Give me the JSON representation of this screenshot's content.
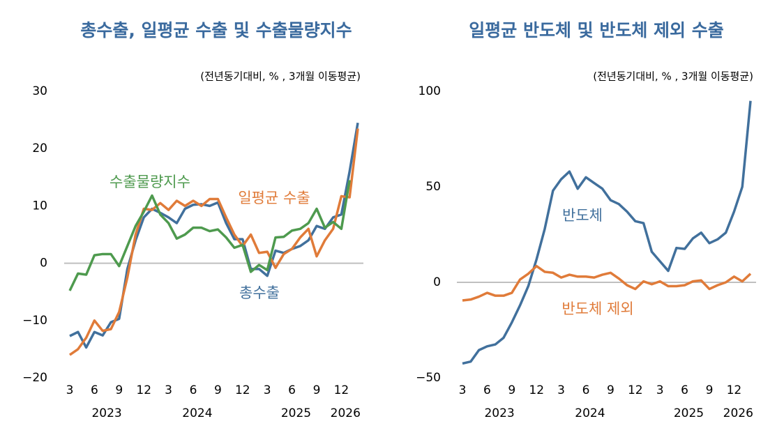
{
  "chart_data": [
    {
      "type": "line",
      "title": "총수출, 일평균 수출 및 수출물량지수",
      "subtitle": "(전년동기대비, % , 3개월 이동평균)",
      "categories": [
        "3",
        null,
        null,
        "6",
        null,
        null,
        "9",
        null,
        null,
        "12",
        null,
        null,
        "3",
        null,
        null,
        "6",
        null,
        null,
        "9",
        null,
        null,
        "12",
        null,
        null,
        "3",
        null,
        null,
        "6",
        null,
        null,
        "9",
        null,
        null,
        "12",
        null,
        null
      ],
      "year_labels": [
        null,
        null,
        null,
        null,
        "2023",
        null,
        null,
        null,
        null,
        null,
        null,
        null,
        null,
        null,
        null,
        "2024",
        null,
        null,
        null,
        null,
        null,
        null,
        null,
        null,
        null,
        null,
        null,
        "2025",
        null,
        null,
        null,
        null,
        null,
        "2026",
        null,
        null
      ],
      "ylim": [
        -20,
        30
      ],
      "yticks": [
        {
          "value": -20,
          "label": "−20"
        },
        {
          "value": -10,
          "label": "−10"
        },
        0,
        10,
        20,
        30
      ],
      "zero_line": true,
      "grid": false,
      "series": [
        {
          "name": "총수출",
          "color": "#41709c",
          "values": [
            -12.7,
            -12.0,
            -14.7,
            -12.0,
            -12.6,
            -10.3,
            -9.7,
            -1.0,
            4.0,
            8.0,
            9.5,
            8.8,
            8.0,
            7.0,
            9.5,
            10.2,
            10.3,
            10.0,
            10.6,
            7.0,
            4.2,
            4.2,
            -1.0,
            -1.0,
            -2.2,
            2.2,
            1.8,
            2.5,
            3.0,
            4.0,
            6.5,
            6.0,
            8.0,
            8.5,
            16.0,
            24.5
          ]
        },
        {
          "name": "일평균 수출",
          "color": "#e07b39",
          "values": [
            -16.0,
            -15.0,
            -13.0,
            -10.0,
            -11.8,
            -11.5,
            -8.5,
            -2.5,
            5.0,
            9.5,
            9.3,
            10.5,
            9.3,
            10.9,
            10.0,
            10.9,
            10.0,
            11.2,
            11.2,
            8.0,
            5.0,
            3.0,
            5.0,
            1.8,
            2.0,
            -0.8,
            1.6,
            2.5,
            4.5,
            6.0,
            1.2,
            4.0,
            6.0,
            11.7,
            11.5,
            23.5
          ]
        },
        {
          "name": "수출물량지수",
          "color": "#4e9a4e",
          "values": [
            -4.8,
            -1.8,
            -2.0,
            1.4,
            1.6,
            1.6,
            -0.5,
            3.0,
            6.5,
            9.0,
            11.8,
            8.5,
            7.0,
            4.3,
            5.0,
            6.2,
            6.2,
            5.6,
            5.9,
            4.5,
            2.7,
            3.2,
            -1.5,
            -0.3,
            -1.2,
            4.5,
            4.6,
            5.7,
            6.0,
            7.0,
            9.5,
            6.2,
            7.2,
            6.0,
            14.5,
            null
          ]
        }
      ]
    },
    {
      "type": "line",
      "title": "일평균 반도체 및 반도체 제외 수출",
      "subtitle": "(전년동기대비, % , 3개월 이동평균)",
      "categories": [
        "3",
        null,
        null,
        "6",
        null,
        null,
        "9",
        null,
        null,
        "12",
        null,
        null,
        "3",
        null,
        null,
        "6",
        null,
        null,
        "9",
        null,
        null,
        "12",
        null,
        null,
        "3",
        null,
        null,
        "6",
        null,
        null,
        "9",
        null,
        null,
        "12",
        null,
        null
      ],
      "year_labels": [
        null,
        null,
        null,
        null,
        "2023",
        null,
        null,
        null,
        null,
        null,
        null,
        null,
        null,
        null,
        null,
        "2024",
        null,
        null,
        null,
        null,
        null,
        null,
        null,
        null,
        null,
        null,
        null,
        "2025",
        null,
        null,
        null,
        null,
        null,
        "2026",
        null,
        null
      ],
      "ylim": [
        -50,
        100
      ],
      "yticks": [
        {
          "value": -50,
          "label": "−50"
        },
        0,
        50,
        100
      ],
      "zero_line": true,
      "grid": false,
      "series": [
        {
          "name": "반도체",
          "color": "#41709c",
          "values": [
            -42.5,
            -41.5,
            -35.5,
            -33.5,
            -32.5,
            -29,
            -21,
            -12,
            -2,
            12,
            28,
            48,
            54,
            58,
            49,
            55,
            52,
            49,
            43,
            41,
            37,
            32,
            31,
            16,
            11,
            6,
            18,
            17.5,
            23,
            26,
            20.5,
            22.5,
            26,
            37,
            50,
            95
          ]
        },
        {
          "name": "반도체 제외",
          "color": "#e07b39",
          "values": [
            -9.5,
            -9,
            -7.5,
            -5.5,
            -7,
            -7,
            -5.5,
            1.5,
            4.5,
            8.5,
            5.5,
            5,
            2.5,
            4,
            3,
            3,
            2.5,
            4,
            5,
            2,
            -1.5,
            -3.5,
            0.5,
            -1,
            0.5,
            -2,
            -2,
            -1.5,
            0.5,
            1,
            -3.5,
            -1.5,
            0,
            3,
            0.5,
            4.5
          ]
        }
      ]
    }
  ]
}
